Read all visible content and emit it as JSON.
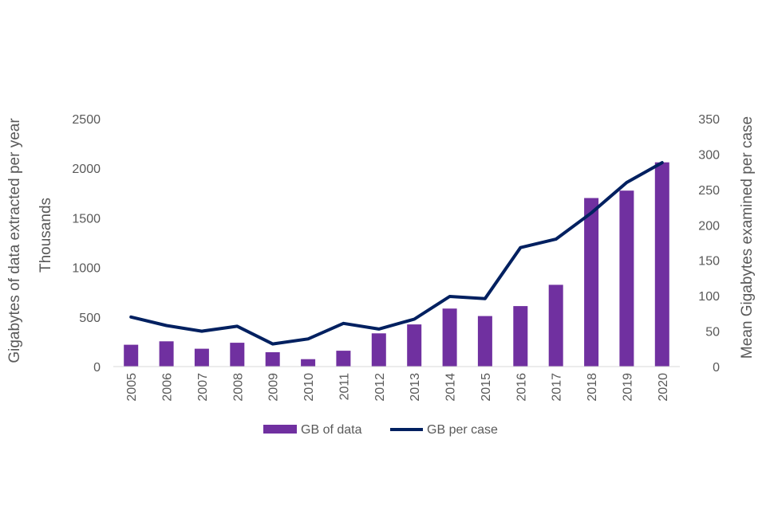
{
  "chart_data": {
    "type": "bar",
    "title": "",
    "categories": [
      "2005",
      "2006",
      "2007",
      "2008",
      "2009",
      "2010",
      "2011",
      "2012",
      "2013",
      "2014",
      "2015",
      "2016",
      "2017",
      "2018",
      "2019",
      "2020"
    ],
    "series": [
      {
        "name": "GB of data",
        "type": "bar",
        "axis": "left",
        "color": "#7030A0",
        "values": [
          220,
          255,
          180,
          240,
          145,
          75,
          160,
          335,
          425,
          585,
          510,
          610,
          825,
          1700,
          1775,
          2060
        ]
      },
      {
        "name": "GB per case",
        "type": "line",
        "axis": "right",
        "color": "#002060",
        "values": [
          70,
          58,
          50,
          57,
          32,
          39,
          61,
          53,
          67,
          99,
          96,
          168,
          180,
          217,
          260,
          288
        ]
      }
    ],
    "y_left": {
      "label": "Gigabytes of data extracted per year",
      "unit_label": "Thousands",
      "ylim": [
        0,
        2500
      ],
      "ticks": [
        "0",
        "500",
        "1000",
        "1500",
        "2000",
        "2500"
      ]
    },
    "y_right": {
      "label": "Mean Gigabytes examined per case",
      "ylim": [
        0,
        350
      ],
      "ticks": [
        "0",
        "50",
        "100",
        "150",
        "200",
        "250",
        "300",
        "350"
      ]
    },
    "xlabel": "",
    "grid": false,
    "legend_position": "bottom",
    "legend": [
      "GB of data",
      "GB per case"
    ]
  }
}
